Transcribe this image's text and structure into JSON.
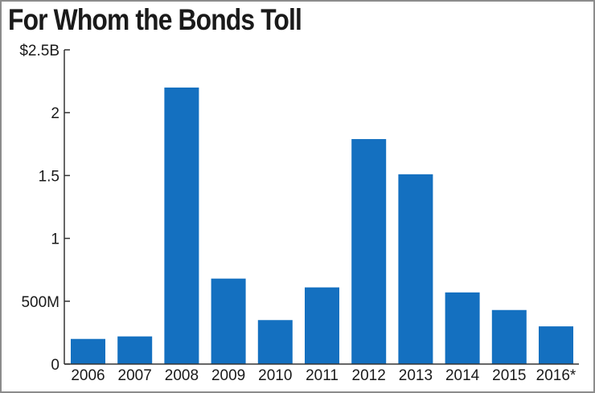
{
  "chart_data": {
    "type": "bar",
    "title": "For Whom the Bonds Toll",
    "categories": [
      "2006",
      "2007",
      "2008",
      "2009",
      "2010",
      "2011",
      "2012",
      "2013",
      "2014",
      "2015",
      "2016*"
    ],
    "values": [
      0.2,
      0.22,
      2.2,
      0.68,
      0.35,
      0.61,
      1.79,
      1.51,
      0.57,
      0.43,
      0.3
    ],
    "unit": "billions of dollars",
    "ylim": [
      0,
      2.5
    ],
    "y_ticks": [
      {
        "value": 0,
        "label": "0"
      },
      {
        "value": 0.5,
        "label": "500M"
      },
      {
        "value": 1,
        "label": "1"
      },
      {
        "value": 1.5,
        "label": "1.5"
      },
      {
        "value": 2,
        "label": "2"
      },
      {
        "value": 2.5,
        "label": "$2.5B"
      }
    ],
    "grid": false,
    "colors": {
      "bar": "#1470c0",
      "axis": "#333333",
      "text": "#1a1a1a"
    }
  }
}
